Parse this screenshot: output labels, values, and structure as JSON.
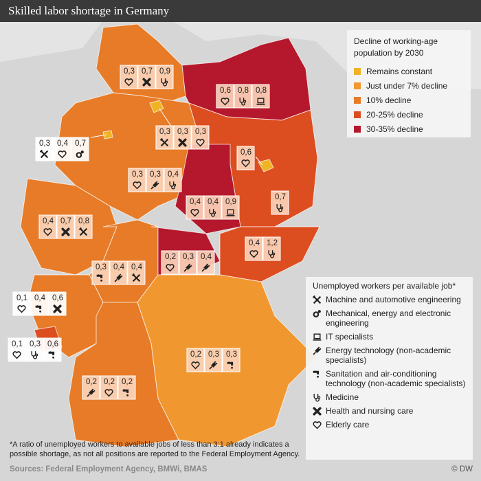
{
  "header": {
    "title": "Skilled labor shortage in Germany"
  },
  "legend_decline": {
    "title": "Decline of working-age population by 2030",
    "items": [
      {
        "label": "Remains constant",
        "color": "#f0b323"
      },
      {
        "label": "Just under 7% decline",
        "color": "#f19730"
      },
      {
        "label": "10% decline",
        "color": "#e77b27"
      },
      {
        "label": "20-25% decline",
        "color": "#dc4d20"
      },
      {
        "label": "30-35% decline",
        "color": "#b5182c"
      }
    ]
  },
  "legend_jobs": {
    "title": "Unemployed workers per available job*",
    "items": [
      "Machine and automotive engineering",
      "Mechanical, energy and electronic engineering",
      "IT specialists",
      "Energy technology (non-academic specialists)",
      "Sanitation and air-conditioning technology (non-academic specialists)",
      "Medicine",
      "Health and nursing care",
      "Elderly care"
    ]
  },
  "regions": [
    [
      "0,3",
      "0,7",
      "0,9"
    ],
    [
      "0,6",
      "0,8",
      "0,8"
    ],
    [
      "0,3",
      "0,4",
      "0,7"
    ],
    [
      "0,3",
      "0,3",
      "0,3"
    ],
    [
      "0,6"
    ],
    [
      "0,3",
      "0,3",
      "0,4"
    ],
    [
      "0,7"
    ],
    [
      "0,4",
      "0,4",
      "0,9"
    ],
    [
      "0,4",
      "0,7",
      "0,8"
    ],
    [
      "0,4",
      "1,2"
    ],
    [
      "0,2",
      "0,3",
      "0,4"
    ],
    [
      "0,3",
      "0,4",
      "0,4"
    ],
    [
      "0,1",
      "0,4",
      "0,6"
    ],
    [
      "0,1",
      "0,3",
      "0,6"
    ],
    [
      "0,2",
      "0,3",
      "0,3"
    ],
    [
      "0,2",
      "0,2",
      "0,2"
    ]
  ],
  "footnote": "*A ratio of unemployed workers to available jobs of less than 3:1 already indicates a possible shortage, as not all positions are reported to the Federal Employment Agency.",
  "sources": "Sources: Federal Employment Agency, BMWi, BMAS",
  "credit": "© DW"
}
